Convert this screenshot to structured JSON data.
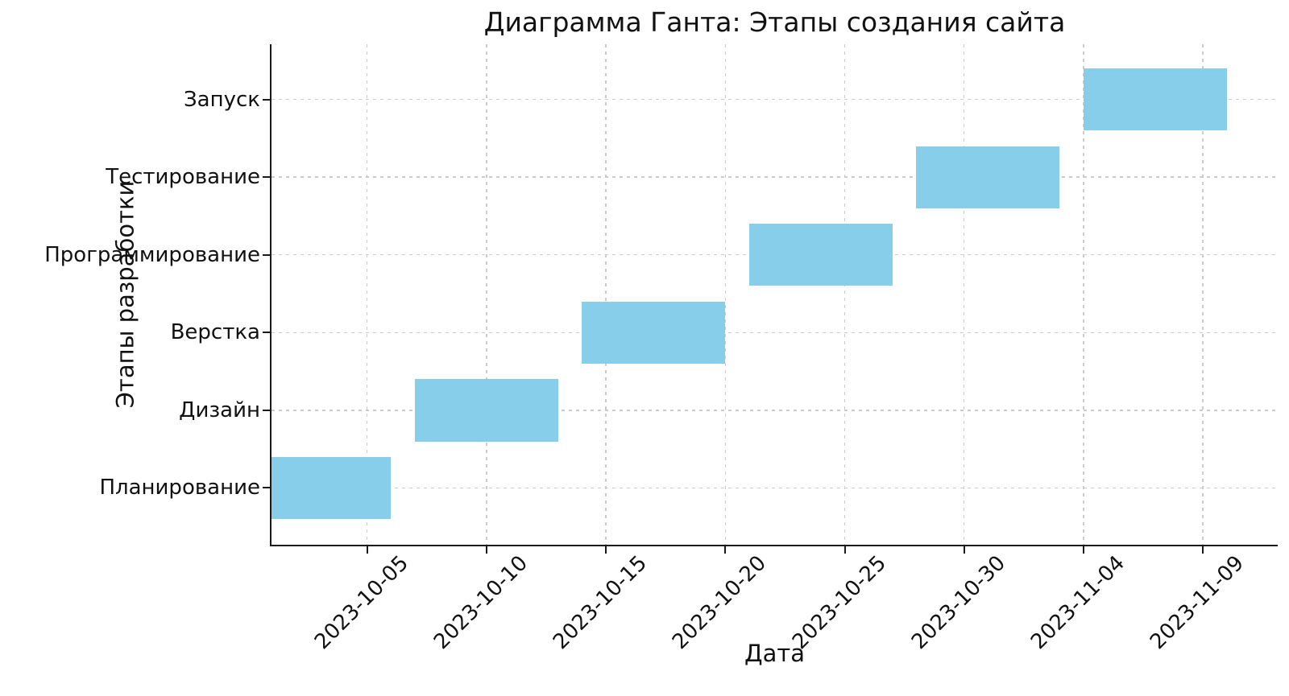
{
  "chart_data": {
    "type": "bar",
    "subtype": "horizontal-gantt",
    "title": "Диаграмма Ганта: Этапы создания сайта",
    "xlabel": "Дата",
    "ylabel": "Этапы разработки",
    "bar_color": "#87CEEB",
    "grid": "dashed, both axes, light gray #cbcbcb",
    "legend": "none",
    "x_axis_start": "2023-10-01",
    "xlim_days": [
      0,
      42.13
    ],
    "ylim": [
      -0.73,
      5.71
    ],
    "bar_height_units": 0.8,
    "categories": [
      "Планирование",
      "Дизайн",
      "Верстка",
      "Программирование",
      "Тестирование",
      "Запуск"
    ],
    "tasks": [
      {
        "label": "Планирование",
        "start": "2023-10-01",
        "end": "2023-10-06",
        "duration_days": 5
      },
      {
        "label": "Дизайн",
        "start": "2023-10-07",
        "end": "2023-10-13",
        "duration_days": 6
      },
      {
        "label": "Верстка",
        "start": "2023-10-14",
        "end": "2023-10-20",
        "duration_days": 6
      },
      {
        "label": "Программирование",
        "start": "2023-10-21",
        "end": "2023-10-27",
        "duration_days": 6
      },
      {
        "label": "Тестирование",
        "start": "2023-10-28",
        "end": "2023-11-03",
        "duration_days": 6
      },
      {
        "label": "Запуск",
        "start": "2023-11-04",
        "end": "2023-11-10",
        "duration_days": 6
      }
    ],
    "x_ticks": [
      "2023-10-05",
      "2023-10-10",
      "2023-10-15",
      "2023-10-20",
      "2023-10-25",
      "2023-10-30",
      "2023-11-04",
      "2023-11-09"
    ],
    "x_tick_rotation_deg": 45
  }
}
